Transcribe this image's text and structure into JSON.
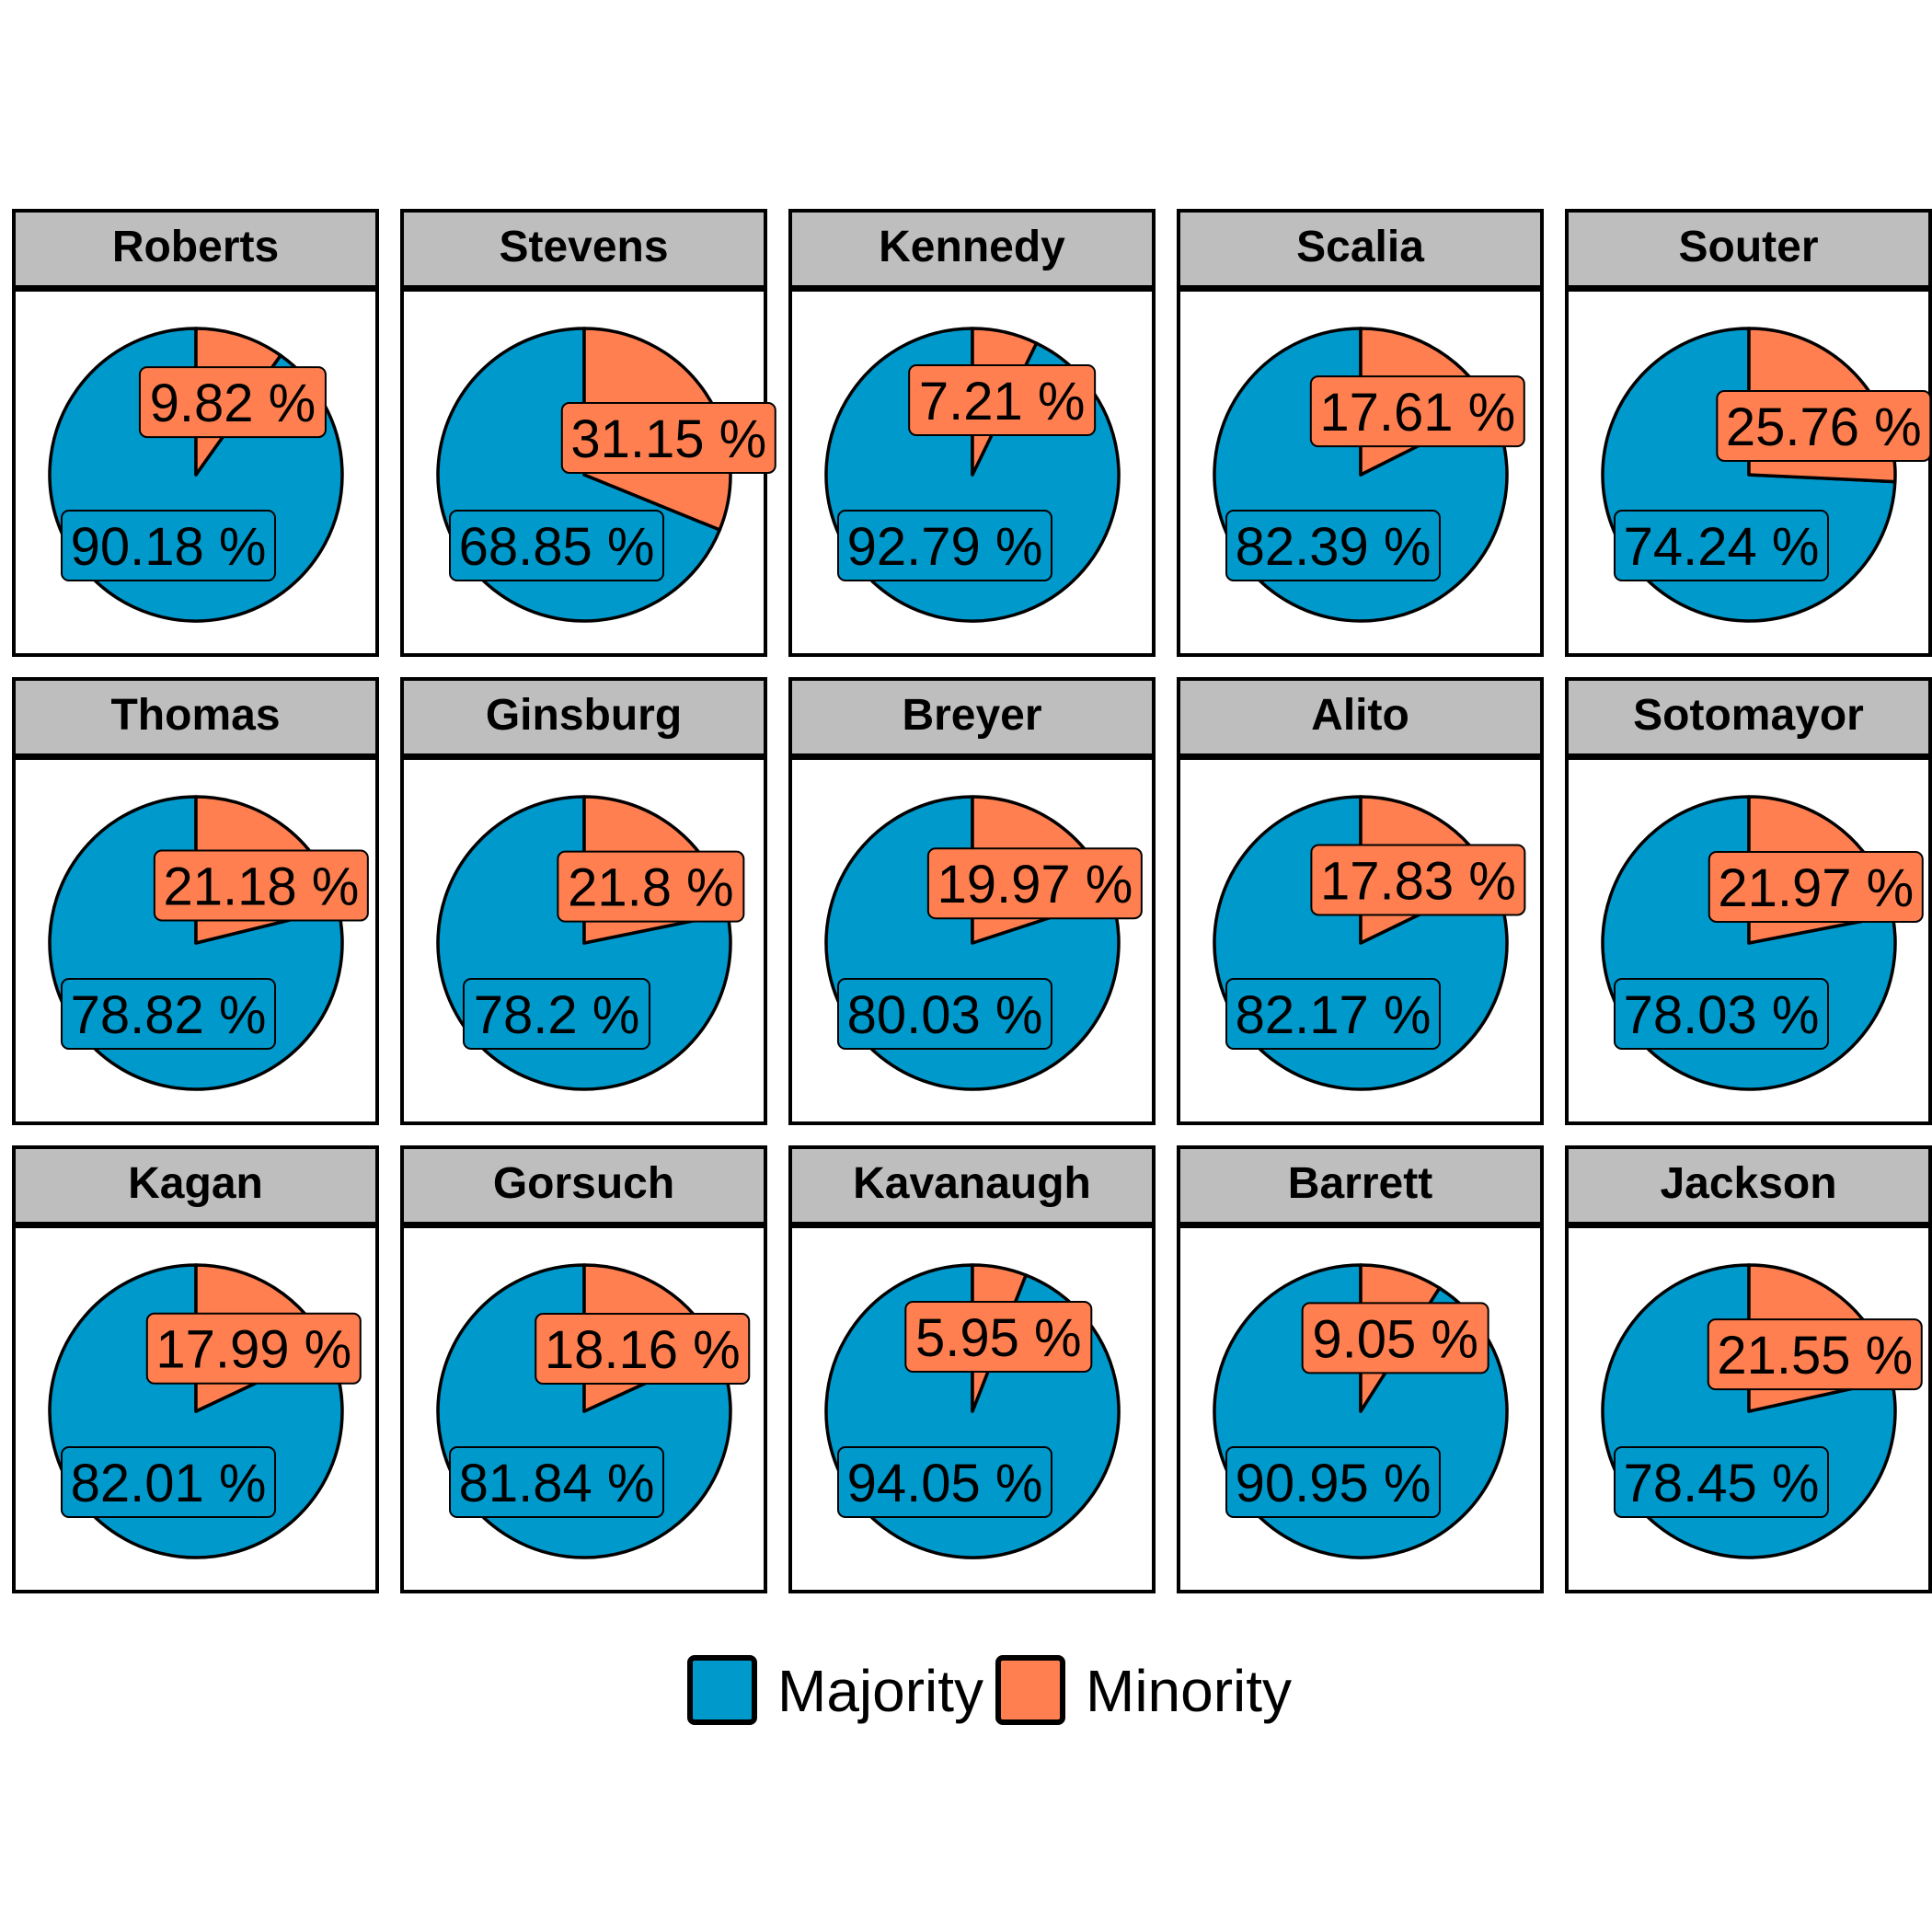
{
  "chart_data": {
    "type": "pie",
    "series_names": [
      "Majority",
      "Minority"
    ],
    "colors": {
      "Majority": "#0099cc",
      "Minority": "#ff7f50"
    },
    "legend_position": "bottom",
    "facets": [
      {
        "justice": "Roberts",
        "majority": 90.18,
        "minority": 9.82,
        "majority_label": "90.18 %",
        "minority_label": "9.82 %"
      },
      {
        "justice": "Stevens",
        "majority": 68.85,
        "minority": 31.15,
        "majority_label": "68.85 %",
        "minority_label": "31.15 %"
      },
      {
        "justice": "Kennedy",
        "majority": 92.79,
        "minority": 7.21,
        "majority_label": "92.79 %",
        "minority_label": "7.21 %"
      },
      {
        "justice": "Scalia",
        "majority": 82.39,
        "minority": 17.61,
        "majority_label": "82.39 %",
        "minority_label": "17.61 %"
      },
      {
        "justice": "Souter",
        "majority": 74.24,
        "minority": 25.76,
        "majority_label": "74.24 %",
        "minority_label": "25.76 %"
      },
      {
        "justice": "Thomas",
        "majority": 78.82,
        "minority": 21.18,
        "majority_label": "78.82 %",
        "minority_label": "21.18 %"
      },
      {
        "justice": "Ginsburg",
        "majority": 78.2,
        "minority": 21.8,
        "majority_label": "78.2 %",
        "minority_label": "21.8 %"
      },
      {
        "justice": "Breyer",
        "majority": 80.03,
        "minority": 19.97,
        "majority_label": "80.03 %",
        "minority_label": "19.97 %"
      },
      {
        "justice": "Alito",
        "majority": 82.17,
        "minority": 17.83,
        "majority_label": "82.17 %",
        "minority_label": "17.83 %"
      },
      {
        "justice": "Sotomayor",
        "majority": 78.03,
        "minority": 21.97,
        "majority_label": "78.03 %",
        "minority_label": "21.97 %"
      },
      {
        "justice": "Kagan",
        "majority": 82.01,
        "minority": 17.99,
        "majority_label": "82.01 %",
        "minority_label": "17.99 %"
      },
      {
        "justice": "Gorsuch",
        "majority": 81.84,
        "minority": 18.16,
        "majority_label": "81.84 %",
        "minority_label": "18.16 %"
      },
      {
        "justice": "Kavanaugh",
        "majority": 94.05,
        "minority": 5.95,
        "majority_label": "94.05 %",
        "minority_label": "5.95 %"
      },
      {
        "justice": "Barrett",
        "majority": 90.95,
        "minority": 9.05,
        "majority_label": "90.95 %",
        "minority_label": "9.05 %"
      },
      {
        "justice": "Jackson",
        "majority": 78.45,
        "minority": 21.55,
        "majority_label": "78.45 %",
        "minority_label": "21.55 %"
      }
    ],
    "legend": [
      {
        "name": "Majority",
        "label": "Majority"
      },
      {
        "name": "Minority",
        "label": "Minority"
      }
    ]
  }
}
